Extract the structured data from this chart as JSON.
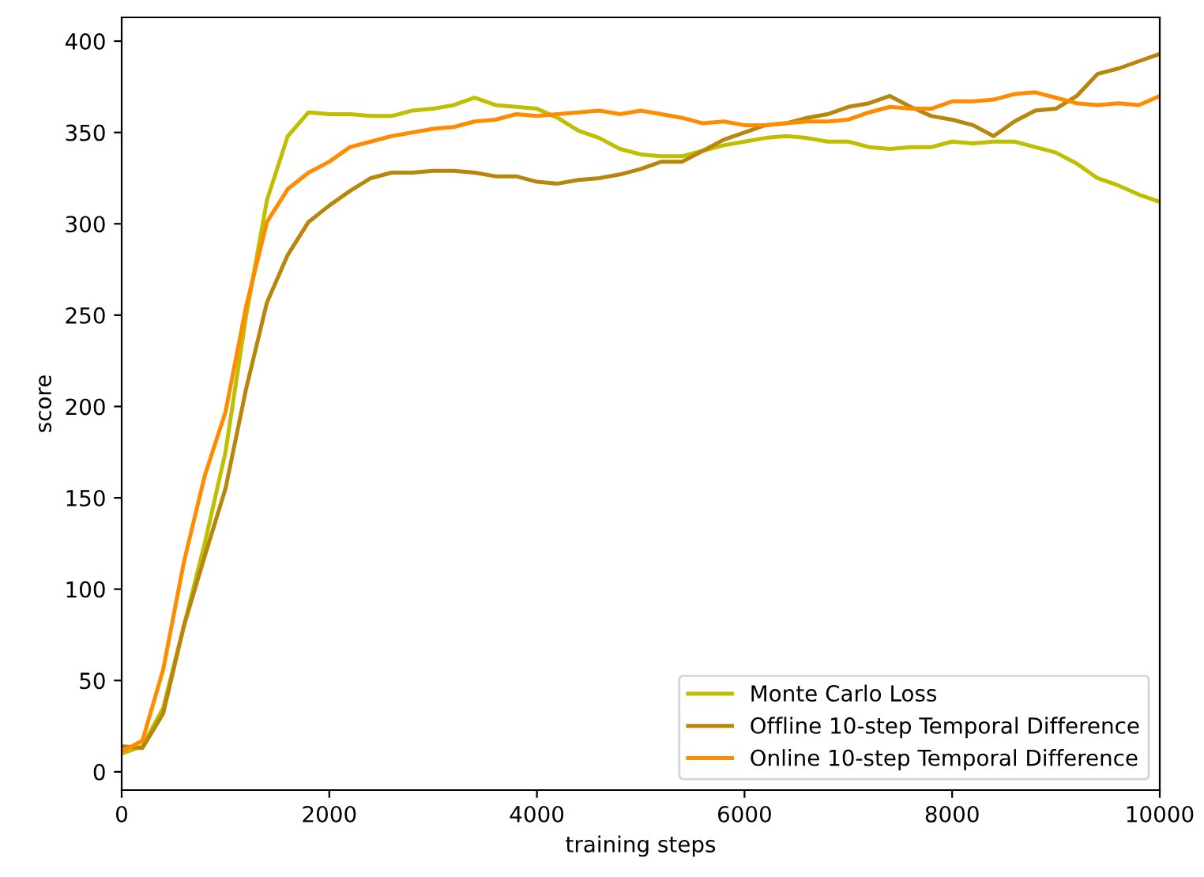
{
  "chart_data": {
    "type": "line",
    "xlabel": "training steps",
    "ylabel": "score",
    "xlim": [
      0,
      10000
    ],
    "xticks": [
      0,
      2000,
      4000,
      6000,
      8000,
      10000
    ],
    "ylim": [
      -10,
      413
    ],
    "yticks": [
      0,
      50,
      100,
      150,
      200,
      250,
      300,
      350,
      400
    ],
    "grid": false,
    "legend": "bottom right",
    "marker": "none",
    "line_style": "solid",
    "x": [
      0,
      200,
      400,
      600,
      800,
      1000,
      1200,
      1400,
      1600,
      1800,
      2000,
      2200,
      2400,
      2600,
      2800,
      3000,
      3200,
      3400,
      3600,
      3800,
      4000,
      4200,
      4400,
      4600,
      4800,
      5000,
      5200,
      5400,
      5600,
      5800,
      6000,
      6200,
      6400,
      6600,
      6800,
      7000,
      7200,
      7400,
      7600,
      7800,
      8000,
      8200,
      8400,
      8600,
      8800,
      9000,
      9200,
      9400,
      9600,
      9800,
      10000
    ],
    "series": [
      {
        "name": "Monte Carlo Loss",
        "color": "#bfbf00",
        "values": [
          10,
          14,
          35,
          80,
          125,
          175,
          250,
          313,
          348,
          361,
          360,
          360,
          359,
          359,
          362,
          363,
          365,
          369,
          365,
          364,
          363,
          358,
          351,
          347,
          341,
          338,
          337,
          337,
          340,
          343,
          345,
          347,
          348,
          347,
          345,
          345,
          342,
          341,
          342,
          342,
          345,
          344,
          345,
          345,
          342,
          339,
          333,
          325,
          321,
          316,
          312
        ]
      },
      {
        "name": "Offline 10-step Temporal Difference",
        "color": "#b8860b",
        "values": [
          14,
          13,
          32,
          80,
          118,
          155,
          210,
          257,
          283,
          301,
          310,
          318,
          325,
          328,
          328,
          329,
          329,
          328,
          326,
          326,
          323,
          322,
          324,
          325,
          327,
          330,
          334,
          334,
          340,
          346,
          350,
          354,
          355,
          358,
          360,
          364,
          366,
          370,
          364,
          359,
          357,
          354,
          348,
          356,
          362,
          363,
          370,
          382,
          385,
          389,
          393
        ]
      },
      {
        "name": "Online 10-step Temporal Difference",
        "color": "#ff8c00",
        "values": [
          11,
          17,
          56,
          115,
          162,
          197,
          255,
          301,
          319,
          328,
          334,
          342,
          345,
          348,
          350,
          352,
          353,
          356,
          357,
          360,
          359,
          360,
          361,
          362,
          360,
          362,
          360,
          358,
          355,
          356,
          354,
          354,
          355,
          356,
          356,
          357,
          361,
          364,
          363,
          363,
          367,
          367,
          368,
          371,
          372,
          369,
          366,
          365,
          366,
          365,
          370
        ]
      }
    ]
  }
}
